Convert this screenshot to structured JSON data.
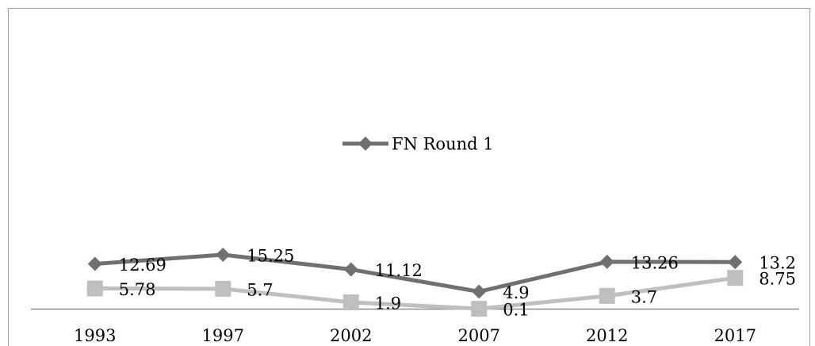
{
  "chart_data": {
    "type": "line",
    "categories": [
      "1993",
      "1997",
      "2002",
      "2007",
      "2012",
      "2017"
    ],
    "series": [
      {
        "name": "FN Round 1",
        "color": "#707070",
        "marker": "diamond",
        "values": [
          12.69,
          15.25,
          11.12,
          4.9,
          13.26,
          13.2
        ]
      },
      {
        "color": "#bfbfbf",
        "marker": "square",
        "values": [
          5.78,
          5.7,
          1.9,
          0.1,
          3.7,
          8.75
        ]
      }
    ],
    "ylim": [
      0,
      70
    ],
    "legend": "center"
  }
}
